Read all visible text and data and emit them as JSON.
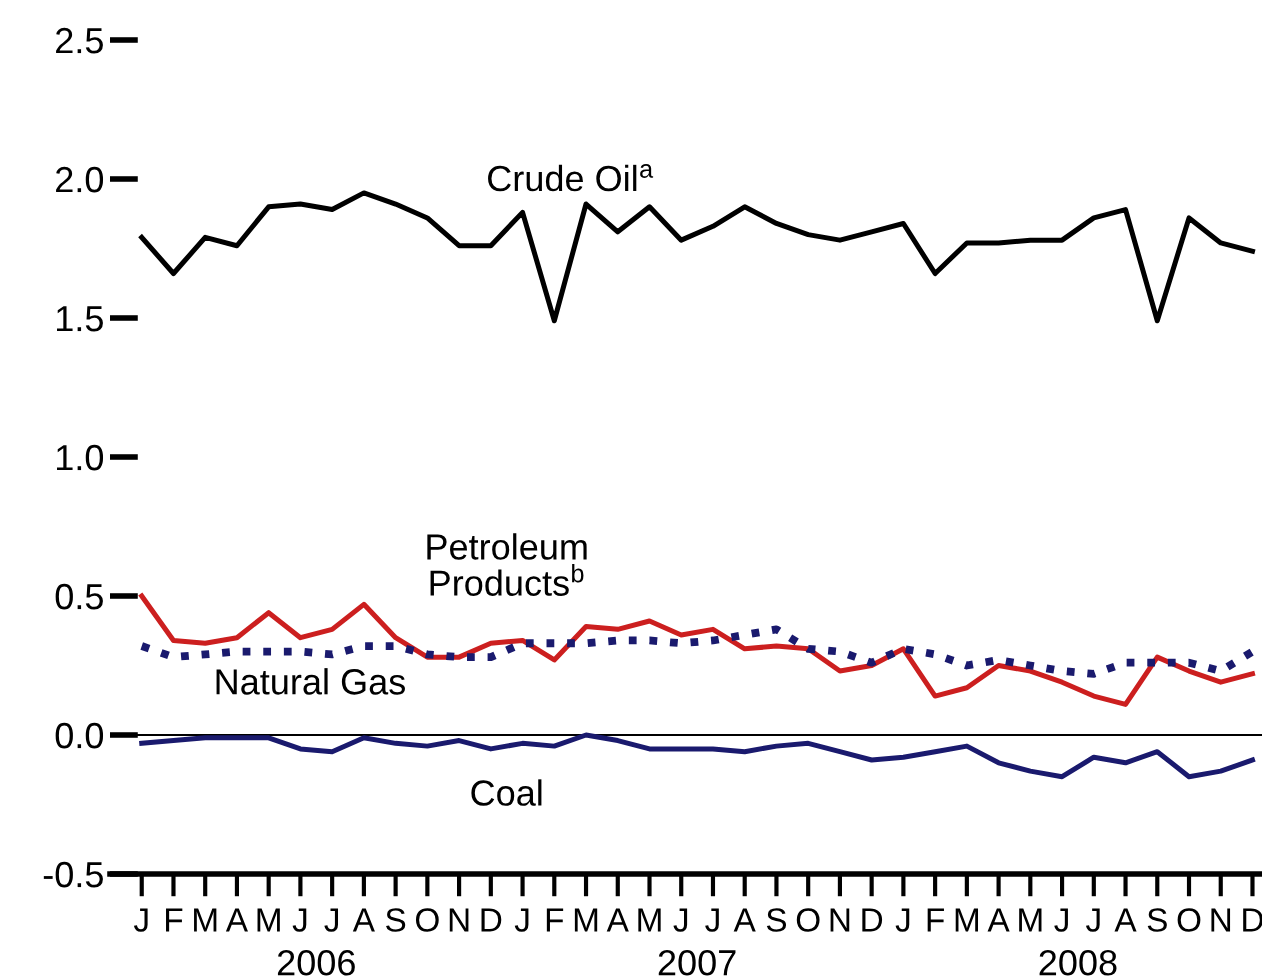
{
  "chart_data": {
    "type": "line",
    "categories": [
      "J",
      "F",
      "M",
      "A",
      "M",
      "J",
      "J",
      "A",
      "S",
      "O",
      "N",
      "D",
      "J",
      "F",
      "M",
      "A",
      "M",
      "J",
      "J",
      "A",
      "S",
      "O",
      "N",
      "D",
      "J",
      "F",
      "M",
      "A",
      "M",
      "J",
      "J",
      "A",
      "S",
      "O",
      "N",
      "D"
    ],
    "series": [
      {
        "name": "Crude Oil$^{a}$",
        "color": "#000000",
        "line_style": "solid",
        "values": [
          1.79,
          1.66,
          1.79,
          1.76,
          1.9,
          1.91,
          1.89,
          1.95,
          1.91,
          1.86,
          1.76,
          1.76,
          1.88,
          1.49,
          1.91,
          1.81,
          1.9,
          1.78,
          1.83,
          1.9,
          1.84,
          1.8,
          1.78,
          1.81,
          1.84,
          1.66,
          1.77,
          1.77,
          1.78,
          1.78,
          1.86,
          1.89,
          1.49,
          1.86,
          1.77,
          1.74
        ]
      },
      {
        "name": "Petroleum\nProducts$^{b}$",
        "color": "#cc1f1f",
        "line_style": "solid",
        "values": [
          0.5,
          0.34,
          0.33,
          0.35,
          0.44,
          0.35,
          0.38,
          0.47,
          0.35,
          0.28,
          0.28,
          0.33,
          0.34,
          0.27,
          0.39,
          0.38,
          0.41,
          0.36,
          0.38,
          0.31,
          0.32,
          0.31,
          0.23,
          0.25,
          0.31,
          0.14,
          0.17,
          0.25,
          0.23,
          0.19,
          0.14,
          0.11,
          0.28,
          0.23,
          0.19,
          0.22
        ]
      },
      {
        "name": "Natural Gas",
        "color": "#1a1a6e",
        "line_style": "dotted",
        "values": [
          0.32,
          0.28,
          0.29,
          0.3,
          0.3,
          0.3,
          0.29,
          0.32,
          0.32,
          0.29,
          0.28,
          0.28,
          0.33,
          0.33,
          0.33,
          0.34,
          0.34,
          0.33,
          0.34,
          0.36,
          0.38,
          0.31,
          0.3,
          0.26,
          0.31,
          0.29,
          0.25,
          0.27,
          0.25,
          0.23,
          0.22,
          0.26,
          0.26,
          0.26,
          0.23,
          0.3
        ]
      },
      {
        "name": "Coal",
        "color": "#1a1a6e",
        "line_style": "solid",
        "values": [
          -0.03,
          -0.02,
          -0.01,
          -0.01,
          -0.01,
          -0.05,
          -0.06,
          -0.01,
          -0.03,
          -0.04,
          -0.02,
          -0.05,
          -0.03,
          -0.04,
          0.0,
          -0.02,
          -0.05,
          -0.05,
          -0.05,
          -0.06,
          -0.04,
          -0.03,
          -0.06,
          -0.09,
          -0.08,
          -0.06,
          -0.04,
          -0.1,
          -0.13,
          -0.15,
          -0.08,
          -0.1,
          -0.06,
          -0.15,
          -0.13,
          -0.09
        ]
      }
    ],
    "ylim": [
      -0.5,
      2.5
    ],
    "yticks": [
      {
        "value": -0.5,
        "label": "-0.5"
      },
      {
        "value": 0,
        "label": "0.0"
      },
      0.5,
      {
        "value": 1,
        "label": "1.0"
      },
      1.5,
      {
        "value": 2,
        "label": "2.0"
      },
      2.5
    ],
    "ref_lines": [
      {
        "axis": "y",
        "value": 0,
        "color": "#000000"
      }
    ],
    "annotations": [
      "2006",
      "2007",
      "2008"
    ],
    "grid": false,
    "legend": false
  }
}
